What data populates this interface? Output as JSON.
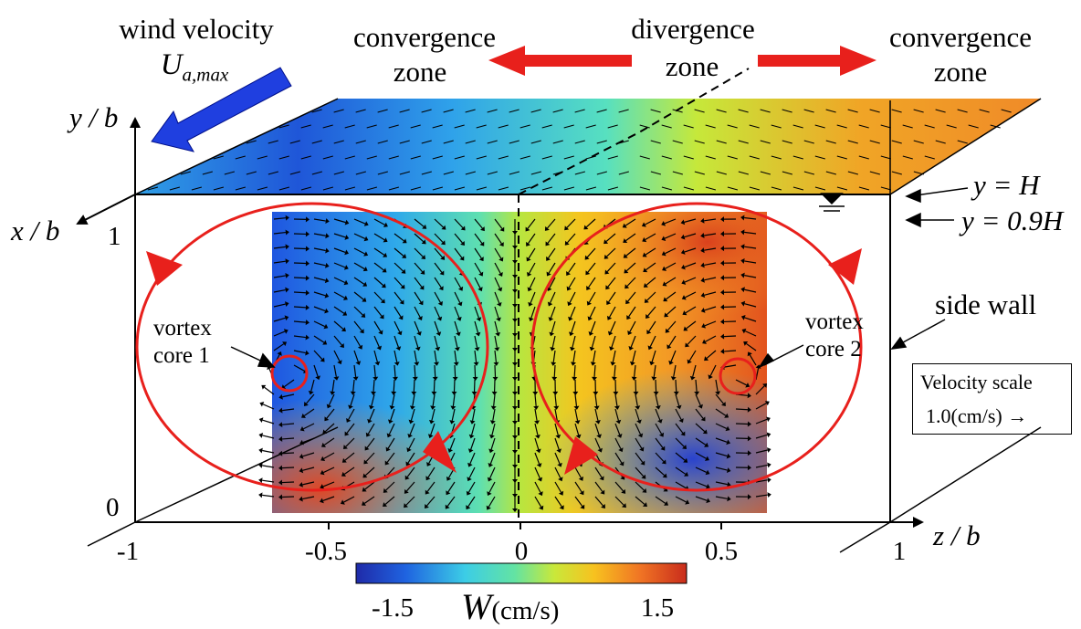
{
  "labels": {
    "wind_line1": "wind velocity",
    "wind_U": "U",
    "wind_sub": "a,max",
    "conv_left_line1": "convergence",
    "conv_left_line2": "zone",
    "div_line1": "divergence",
    "div_line2": "zone",
    "conv_right_line1": "convergence",
    "conv_right_line2": "zone",
    "y_axis": "y / b",
    "x_axis": "x / b",
    "z_axis": "z / b",
    "yH": "y = H",
    "y09H": "y = 0.9H",
    "side_wall": "side wall",
    "vortex1_line1": "vortex",
    "vortex1_line2": "core 1",
    "vortex2_line1": "vortex",
    "vortex2_line2": "core 2"
  },
  "y_ticks": [
    "1",
    "0"
  ],
  "z_ticks": [
    "-1",
    "-0.5",
    "0",
    "0.5",
    "1"
  ],
  "velocity_scale": {
    "title": "Velocity scale",
    "value": "1.0(cm/s)",
    "arrow": "→"
  },
  "colorbar": {
    "min_label": "-1.5",
    "max_label": "1.5",
    "var": "W",
    "unit": "(cm/s)",
    "colors": [
      "#1f2aa8",
      "#1f7be8",
      "#3ccde6",
      "#63e3a3",
      "#c9e83a",
      "#f7c21f",
      "#f07424",
      "#c92c1c"
    ]
  },
  "colors": {
    "flow_arrow": "#e8201c",
    "wind_arrow": "#1f3fe0",
    "vortex_circle": "#e8201c",
    "axis": "#000000"
  }
}
